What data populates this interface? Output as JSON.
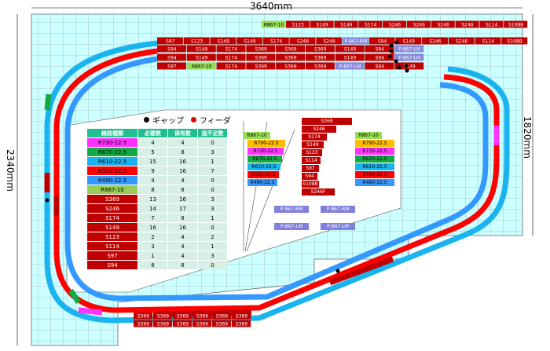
{
  "dimensions": {
    "width": "3640mm",
    "height_right": "1820mm",
    "height_left": "2340mm"
  },
  "legend": [
    {
      "label": "ギャップ",
      "color": "#000000"
    },
    {
      "label": "フィーダ",
      "color": "#e00000"
    }
  ],
  "table": {
    "headers": [
      "線路種類",
      "必要数",
      "保有数",
      "過不足数"
    ],
    "rows": [
      {
        "kind": "R730-22.5",
        "need": "4",
        "have": "4",
        "diff": "0",
        "color": "#ff33ff"
      },
      {
        "kind": "R670-22.5",
        "need": "5",
        "have": "8",
        "diff": "3",
        "color": "#11aa44"
      },
      {
        "kind": "R610-22.5",
        "need": "15",
        "have": "16",
        "diff": "1",
        "color": "#19b4f0"
      },
      {
        "kind": "R550-22.5",
        "need": "9",
        "have": "16",
        "diff": "7",
        "color": "#ff0000"
      },
      {
        "kind": "R490-22.5",
        "need": "4",
        "have": "4",
        "diff": "0",
        "color": "#3399ff"
      },
      {
        "kind": "R867-10",
        "need": "8",
        "have": "8",
        "diff": "0",
        "color": "#99cc55"
      },
      {
        "kind": "S369",
        "need": "13",
        "have": "16",
        "diff": "3",
        "color": "#c00000"
      },
      {
        "kind": "S246",
        "need": "14",
        "have": "17",
        "diff": "3",
        "color": "#c00000"
      },
      {
        "kind": "S174",
        "need": "7",
        "have": "8",
        "diff": "1",
        "color": "#c00000"
      },
      {
        "kind": "S149",
        "need": "16",
        "have": "16",
        "diff": "0",
        "color": "#c00000"
      },
      {
        "kind": "S123",
        "need": "2",
        "have": "4",
        "diff": "2",
        "color": "#c00000"
      },
      {
        "kind": "S114",
        "need": "3",
        "have": "4",
        "diff": "1",
        "color": "#c00000"
      },
      {
        "kind": "S97",
        "need": "1",
        "have": "4",
        "diff": "3",
        "color": "#c00000"
      },
      {
        "kind": "S94",
        "need": "8",
        "have": "8",
        "diff": "0",
        "color": "#c00000"
      }
    ]
  },
  "palette": {
    "straights": [
      "S369",
      "S246",
      "S174",
      "S149",
      "S123",
      "S114",
      "S97",
      "S94",
      "S108B",
      "S246F"
    ],
    "curves_left": [
      {
        "label": "R867-10",
        "color": "#99dd55"
      },
      {
        "label": "R790-22.5",
        "color": "#ffbb00"
      },
      {
        "label": "R730-22.5",
        "color": "#ff33ff"
      },
      {
        "label": "R670-22.5",
        "color": "#11aa44"
      },
      {
        "label": "R610-22.5",
        "color": "#19b4f0"
      },
      {
        "label": "R550-22.5",
        "color": "#ff0000"
      },
      {
        "label": "R490-22.5",
        "color": "#3399ff"
      }
    ],
    "curves_right": [
      {
        "label": "R867-10",
        "color": "#99dd55"
      },
      {
        "label": "R790-22.5",
        "color": "#ffbb00"
      },
      {
        "label": "R730-22.5",
        "color": "#ff33ff"
      },
      {
        "label": "R670-22.5",
        "color": "#11aa44"
      },
      {
        "label": "R610-22.5",
        "color": "#19b4f0"
      },
      {
        "label": "R550-22.5",
        "color": "#ff0000"
      },
      {
        "label": "R490-22.5",
        "color": "#3399ff"
      }
    ],
    "points": [
      "P-867-RM",
      "P-867-RM",
      "P-867-LM",
      "P-867-LM"
    ]
  },
  "track_rows": [
    [
      "R867-10",
      "S123",
      "S149",
      "S149",
      "S174",
      "S246",
      "S246",
      "S246",
      "S246",
      "S114",
      "S108B"
    ],
    [
      "S97",
      "S123",
      "S149",
      "S149",
      "S174",
      "S246",
      "S246",
      "P-867-RM",
      "S94",
      "S149",
      "S246",
      "S246",
      "S114",
      "S108B"
    ],
    [
      "S94",
      "S149",
      "S174",
      "S369",
      "S369",
      "S369",
      "S149",
      "S94",
      "P-867-LM"
    ],
    [
      "S94",
      "S149",
      "S174",
      "S369",
      "S369",
      "S369",
      "S149",
      "S94",
      "P-867-LM"
    ],
    [
      "S97",
      "R867-10",
      "S174",
      "S369",
      "S369",
      "S369",
      "P-867-LM",
      "S94",
      "S149"
    ],
    [
      "S369",
      "S369",
      "S369",
      "S369",
      "S369",
      "S369"
    ],
    [
      "S369",
      "S369",
      "S369",
      "S369",
      "S369",
      "S369"
    ]
  ]
}
